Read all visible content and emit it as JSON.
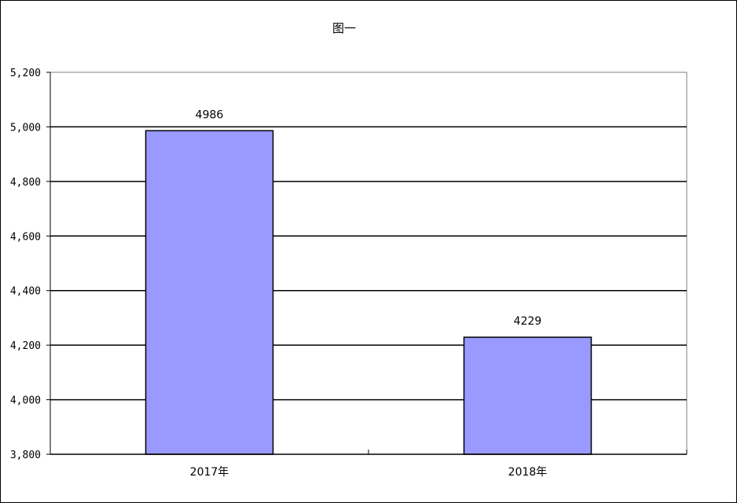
{
  "chart_data": {
    "type": "bar",
    "title": "图一",
    "categories": [
      "2017年",
      "2018年"
    ],
    "values": [
      4986,
      4229
    ],
    "data_labels": [
      "4986",
      "4229"
    ],
    "ylim": [
      3800,
      5200
    ],
    "yticks": [
      3800,
      4000,
      4200,
      4400,
      4600,
      4800,
      5000,
      5200
    ],
    "ytick_labels": [
      "3,800",
      "4,000",
      "4,200",
      "4,400",
      "4,600",
      "4,800",
      "5,000",
      "5,200"
    ],
    "xlabel": "",
    "ylabel": "",
    "grid": true,
    "legend": "none",
    "colors": {
      "bar_fill": "#9999ff",
      "bar_stroke": "#000000",
      "grid": "#000000",
      "plot_border": "#808080"
    }
  }
}
